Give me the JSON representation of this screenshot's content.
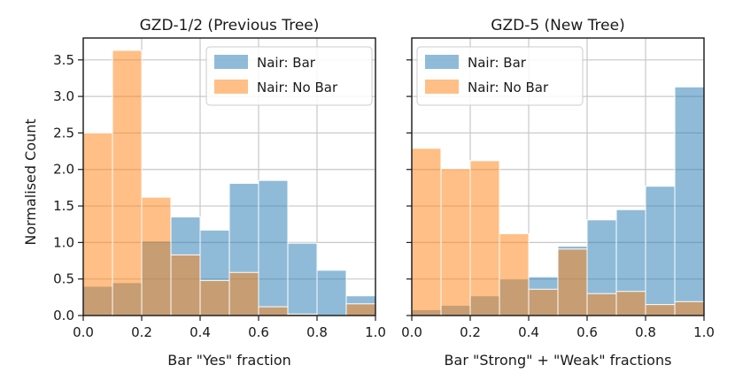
{
  "chart_data": [
    {
      "type": "bar",
      "title": "GZD-1/2 (Previous Tree)",
      "xlabel": "Bar \"Yes\" fraction",
      "ylabel": "Normalised Count",
      "xlim": [
        0.0,
        1.0
      ],
      "ylim": [
        0.0,
        3.8
      ],
      "xticks": [
        "0.0",
        "0.2",
        "0.4",
        "0.6",
        "0.8",
        "1.0"
      ],
      "yticks": [
        "0.0",
        "0.5",
        "1.0",
        "1.5",
        "2.0",
        "2.5",
        "3.0",
        "3.5"
      ],
      "bin_edges": [
        0.0,
        0.1,
        0.2,
        0.3,
        0.4,
        0.5,
        0.6,
        0.7,
        0.8,
        0.9,
        1.0
      ],
      "legend_position": "top-right",
      "series": [
        {
          "name": "Nair: Bar",
          "color": "#1f77b4",
          "values": [
            0.4,
            0.45,
            1.02,
            1.35,
            1.17,
            1.81,
            1.85,
            0.99,
            0.62,
            0.27
          ]
        },
        {
          "name": "Nair: No Bar",
          "color": "#ff7f0e",
          "values": [
            2.5,
            3.63,
            1.62,
            0.83,
            0.48,
            0.59,
            0.12,
            0.02,
            0.0,
            0.16
          ]
        }
      ]
    },
    {
      "type": "bar",
      "title": "GZD-5 (New Tree)",
      "xlabel": "Bar \"Strong\" + \"Weak\" fractions",
      "ylabel": "",
      "xlim": [
        0.0,
        1.0
      ],
      "ylim": [
        0.0,
        3.8
      ],
      "xticks": [
        "0.0",
        "0.2",
        "0.4",
        "0.6",
        "0.8",
        "1.0"
      ],
      "yticks": [],
      "bin_edges": [
        0.0,
        0.1,
        0.2,
        0.3,
        0.4,
        0.5,
        0.6,
        0.7,
        0.8,
        0.9,
        1.0
      ],
      "legend_position": "top-left",
      "series": [
        {
          "name": "Nair: Bar",
          "color": "#1f77b4",
          "values": [
            0.08,
            0.14,
            0.27,
            0.5,
            0.53,
            0.95,
            1.31,
            1.45,
            1.77,
            3.13
          ]
        },
        {
          "name": "Nair: No Bar",
          "color": "#ff7f0e",
          "values": [
            2.29,
            2.01,
            2.12,
            1.12,
            0.36,
            0.91,
            0.3,
            0.33,
            0.15,
            0.19
          ]
        }
      ]
    }
  ]
}
